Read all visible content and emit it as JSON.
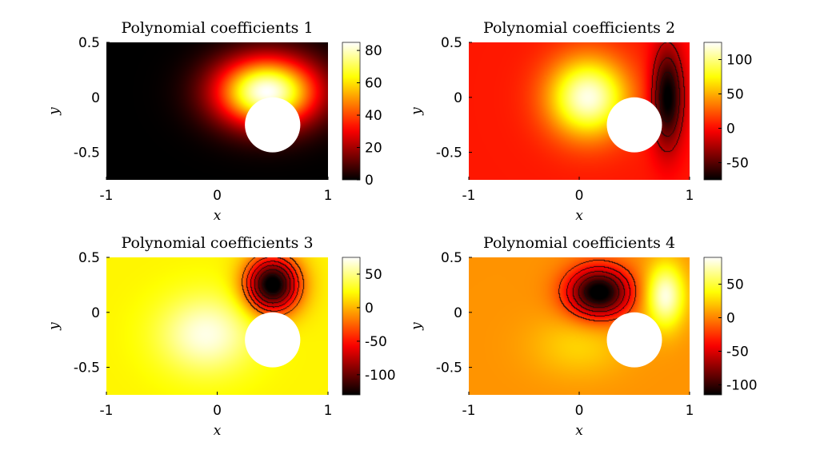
{
  "chart_data": [
    {
      "type": "heatmap",
      "title": "Polynomial coefficients 1",
      "xlabel": "x",
      "ylabel": "y",
      "xlim": [
        -1,
        1
      ],
      "ylim": [
        -0.75,
        0.5
      ],
      "xticks": [
        "-1",
        "0",
        "1"
      ],
      "yticks": [
        "0.5",
        "0",
        "-0.5"
      ],
      "colorbar": {
        "range": [
          0,
          85
        ],
        "ticks": [
          "80",
          "60",
          "40",
          "20",
          "0"
        ],
        "tick_values": [
          80,
          60,
          40,
          20,
          0
        ]
      },
      "colormap": "hot",
      "obstacle": {
        "shape": "circle",
        "center": [
          0.5,
          -0.25
        ],
        "radius": 0.25,
        "color": "#ffffff"
      },
      "background_value": 0,
      "blobs": [
        {
          "x": 0.45,
          "y": 0.05,
          "sx": 0.32,
          "sy": 0.22,
          "value": 85
        }
      ],
      "contours": false
    },
    {
      "type": "heatmap",
      "title": "Polynomial coefficients 2",
      "xlabel": "x",
      "ylabel": "y",
      "xlim": [
        -1,
        1
      ],
      "ylim": [
        -0.75,
        0.5
      ],
      "xticks": [
        "-1",
        "0",
        "1"
      ],
      "yticks": [
        "0.5",
        "0",
        "-0.5"
      ],
      "colorbar": {
        "range": [
          -75,
          125
        ],
        "ticks": [
          "100",
          "50",
          "0",
          "-50"
        ],
        "tick_values": [
          100,
          50,
          0,
          -50
        ]
      },
      "colormap": "hot",
      "obstacle": {
        "shape": "circle",
        "center": [
          0.5,
          -0.25
        ],
        "radius": 0.25,
        "color": "#ffffff"
      },
      "background_value": 5,
      "blobs": [
        {
          "x": 0.08,
          "y": 0.0,
          "sx": 0.25,
          "sy": 0.25,
          "value": 120
        },
        {
          "x": 0.8,
          "y": 0.0,
          "sx": 0.1,
          "sy": 0.32,
          "value": -80
        }
      ],
      "contours": true
    },
    {
      "type": "heatmap",
      "title": "Polynomial coefficients 3",
      "xlabel": "x",
      "ylabel": "y",
      "xlim": [
        -1,
        1
      ],
      "ylim": [
        -0.75,
        0.5
      ],
      "xticks": [
        "-1",
        "0",
        "1"
      ],
      "yticks": [
        "0.5",
        "0",
        "-0.5"
      ],
      "colorbar": {
        "range": [
          -130,
          75
        ],
        "ticks": [
          "50",
          "0",
          "-50",
          "-100"
        ],
        "tick_values": [
          50,
          0,
          -50,
          -100
        ]
      },
      "colormap": "hot",
      "obstacle": {
        "shape": "circle",
        "center": [
          0.5,
          -0.25
        ],
        "radius": 0.25,
        "color": "#ffffff"
      },
      "background_value": 20,
      "blobs": [
        {
          "x": -0.1,
          "y": -0.2,
          "sx": 0.3,
          "sy": 0.25,
          "value": 70
        },
        {
          "x": 0.5,
          "y": 0.25,
          "sx": 0.17,
          "sy": 0.18,
          "value": -140
        }
      ],
      "contours": true
    },
    {
      "type": "heatmap",
      "title": "Polynomial coefficients 4",
      "xlabel": "x",
      "ylabel": "y",
      "xlim": [
        -1,
        1
      ],
      "ylim": [
        -0.75,
        0.5
      ],
      "xticks": [
        "-1",
        "0",
        "1"
      ],
      "yticks": [
        "0.5",
        "0",
        "-0.5"
      ],
      "colorbar": {
        "range": [
          -115,
          90
        ],
        "ticks": [
          "50",
          "0",
          "-50",
          "-100"
        ],
        "tick_values": [
          50,
          0,
          -50,
          -100
        ]
      },
      "colormap": "hot",
      "obstacle": {
        "shape": "circle",
        "center": [
          0.5,
          -0.25
        ],
        "radius": 0.25,
        "color": "#ffffff"
      },
      "background_value": 5,
      "blobs": [
        {
          "x": 0.18,
          "y": 0.18,
          "sx": 0.2,
          "sy": 0.16,
          "value": -125
        },
        {
          "x": 0.78,
          "y": 0.15,
          "sx": 0.12,
          "sy": 0.2,
          "value": 85
        },
        {
          "x": 0.0,
          "y": -0.3,
          "sx": 0.3,
          "sy": 0.2,
          "value": 25
        }
      ],
      "contours": true
    }
  ]
}
